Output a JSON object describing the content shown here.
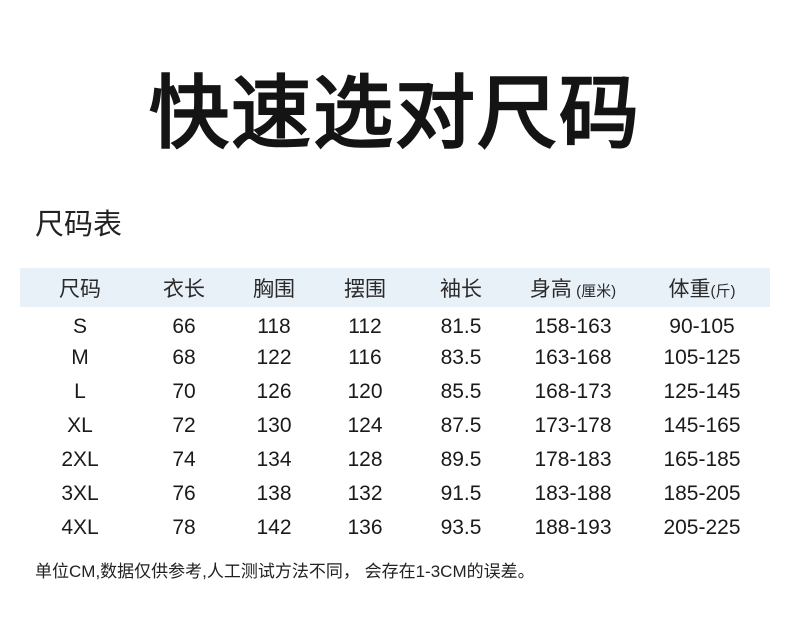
{
  "page": {
    "title": "快速选对尺码",
    "section_title": "尺码表",
    "footnote": "单位CM,数据仅供参考,人工测试方法不同， 会存在1-3CM的误差。"
  },
  "size_table": {
    "columns": [
      {
        "label": "尺码",
        "unit": ""
      },
      {
        "label": "衣长",
        "unit": ""
      },
      {
        "label": "胸围",
        "unit": ""
      },
      {
        "label": "摆围",
        "unit": ""
      },
      {
        "label": "袖长",
        "unit": ""
      },
      {
        "label": "身高",
        "unit": " (厘米)"
      },
      {
        "label": "体重",
        "unit": "(斤)"
      }
    ],
    "rows": [
      [
        "S",
        "66",
        "118",
        "112",
        "81.5",
        "158-163",
        "90-105"
      ],
      [
        "M",
        "68",
        "122",
        "116",
        "83.5",
        "163-168",
        "105-125"
      ],
      [
        "L",
        "70",
        "126",
        "120",
        "85.5",
        "168-173",
        "125-145"
      ],
      [
        "XL",
        "72",
        "130",
        "124",
        "87.5",
        "173-178",
        "145-165"
      ],
      [
        "2XL",
        "74",
        "134",
        "128",
        "89.5",
        "178-183",
        "165-185"
      ],
      [
        "3XL",
        "76",
        "138",
        "132",
        "91.5",
        "183-188",
        "185-205"
      ],
      [
        "4XL",
        "78",
        "142",
        "136",
        "93.5",
        "188-193",
        "205-225"
      ]
    ]
  },
  "colors": {
    "header_band": "#e8f0f8",
    "body_text": "#1a1a1a",
    "background": "#ffffff"
  }
}
